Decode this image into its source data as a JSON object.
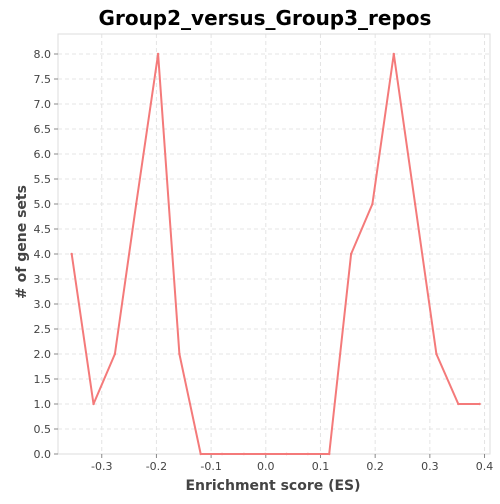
{
  "chart_data": {
    "type": "line",
    "title": "Group2_versus_Group3_repos",
    "xlabel": "Enrichment score (ES)",
    "ylabel": "# of gene sets",
    "xlim": [
      -0.38,
      0.41
    ],
    "ylim": [
      0,
      8.4
    ],
    "x_ticks": [
      "-0.3",
      "-0.2",
      "-0.1",
      "0.0",
      "0.1",
      "0.2",
      "0.3",
      "0.4"
    ],
    "y_ticks": [
      "0.0",
      "0.5",
      "1.0",
      "1.5",
      "2.0",
      "2.5",
      "3.0",
      "3.5",
      "4.0",
      "4.5",
      "5.0",
      "5.5",
      "6.0",
      "6.5",
      "7.0",
      "7.5",
      "8.0"
    ],
    "grid": true,
    "series": [
      {
        "color": "#f47a7a",
        "x": [
          -0.355,
          -0.315,
          -0.276,
          -0.237,
          -0.197,
          -0.158,
          -0.119,
          -0.08,
          -0.04,
          -0.001,
          0.038,
          0.077,
          0.116,
          0.156,
          0.195,
          0.234,
          0.273,
          0.312,
          0.352,
          0.391
        ],
        "y": [
          4,
          1,
          2,
          5,
          8,
          2,
          0,
          0,
          0,
          0,
          0,
          0,
          0,
          4,
          5,
          8,
          5,
          2,
          1,
          1
        ]
      }
    ]
  }
}
